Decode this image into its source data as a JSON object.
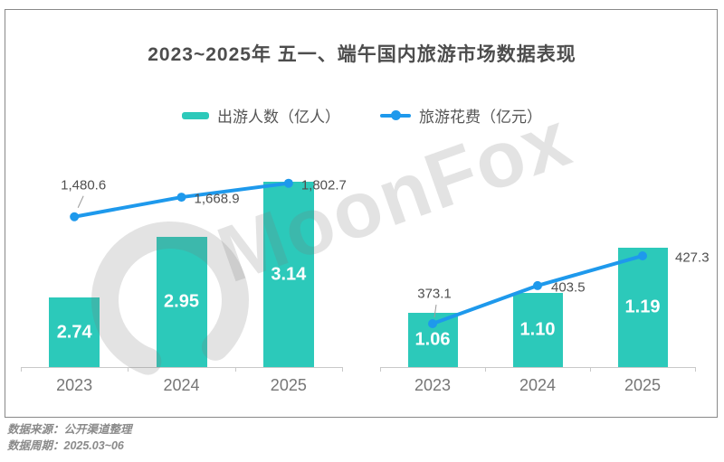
{
  "title": "2023~2025年 五一、端午国内旅游市场数据表现",
  "legend": {
    "bar_label": "出游人数（亿人）",
    "line_label": "旅游花费（亿元）"
  },
  "watermark": {
    "text": "MoonFox"
  },
  "footer": {
    "source": "数据来源：公开渠道整理",
    "period": "数据周期：2025.03~06"
  },
  "colors": {
    "bar": "#2cc9ba",
    "line": "#1e99ec",
    "title_text": "#4d4d4d",
    "year_text": "#767676",
    "value_text": "#4f4f4f",
    "bar_value_text": "#ffffff",
    "axis_line": "#c9c9c9",
    "leader_line": "#9a9a9a",
    "border": "#898989",
    "footer_text": "#8a8a8a"
  },
  "chart_data": [
    {
      "type": "bar",
      "title": "",
      "categories": [
        "2023",
        "2024",
        "2025"
      ],
      "series": [
        {
          "name": "出游人数（亿人）",
          "type": "bar",
          "values": [
            2.74,
            2.95,
            3.14
          ],
          "labels": [
            "2.74",
            "2.95",
            "3.14"
          ]
        },
        {
          "name": "旅游花费（亿元）",
          "type": "line",
          "values": [
            1480.6,
            1668.9,
            1802.7
          ],
          "labels": [
            "1,480.6",
            "1,668.9",
            "1,802.7"
          ]
        }
      ],
      "bar_ylim": [
        2.5,
        3.2
      ],
      "line_ylim": [
        1400,
        1900
      ],
      "grid": false,
      "legend_position": "top"
    },
    {
      "type": "bar",
      "title": "",
      "categories": [
        "2023",
        "2024",
        "2025"
      ],
      "series": [
        {
          "name": "出游人数（亿人）",
          "type": "bar",
          "values": [
            1.06,
            1.1,
            1.19
          ],
          "labels": [
            "1.06",
            "1.10",
            "1.19"
          ]
        },
        {
          "name": "旅游花费（亿元）",
          "type": "line",
          "values": [
            373.1,
            403.5,
            427.3
          ],
          "labels": [
            "373.1",
            "403.5",
            "427.3"
          ]
        }
      ],
      "bar_ylim": [
        0.95,
        1.25
      ],
      "line_ylim": [
        320,
        440
      ],
      "grid": false,
      "legend_position": "top"
    }
  ]
}
